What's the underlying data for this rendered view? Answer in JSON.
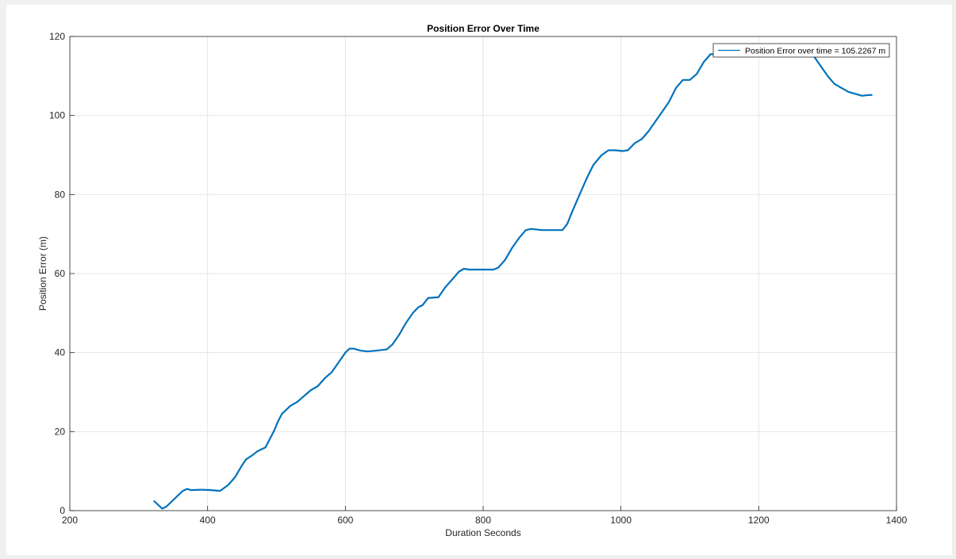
{
  "chart_data": {
    "type": "line",
    "title": "Position Error Over Time",
    "xlabel": "Duration Seconds",
    "ylabel": "Position Error (m)",
    "xlim": [
      200,
      1400
    ],
    "ylim": [
      0,
      120
    ],
    "xticks": [
      "200",
      "400",
      "600",
      "800",
      "1000",
      "1200",
      "1400"
    ],
    "yticks": [
      "0",
      "20",
      "40",
      "60",
      "80",
      "100",
      "120"
    ],
    "grid": true,
    "legend_position": "top-right",
    "colors": {
      "series": "#0072BD",
      "grid": "#e6e6e6",
      "axis": "#262626"
    },
    "series": [
      {
        "name": "Position Error over time = 105.2267 m",
        "x": [
          322,
          328,
          334,
          340,
          346,
          352,
          358,
          364,
          370,
          376,
          390,
          405,
          418,
          430,
          440,
          450,
          456,
          465,
          472,
          478,
          484,
          490,
          496,
          502,
          508,
          514,
          520,
          530,
          540,
          550,
          560,
          570,
          580,
          590,
          600,
          606,
          612,
          622,
          632,
          645,
          660,
          668,
          678,
          688,
          698,
          706,
          712,
          720,
          735,
          745,
          755,
          765,
          772,
          780,
          800,
          815,
          822,
          832,
          842,
          852,
          862,
          870,
          885,
          900,
          915,
          922,
          930,
          940,
          950,
          960,
          972,
          982,
          992,
          1002,
          1010,
          1020,
          1030,
          1040,
          1050,
          1060,
          1070,
          1080,
          1090,
          1100,
          1110,
          1120,
          1130,
          1140,
          1180,
          1220,
          1260,
          1280,
          1290,
          1300,
          1310,
          1320,
          1330,
          1340,
          1350,
          1360,
          1365
        ],
        "y": [
          2.5,
          1.5,
          0.5,
          1.0,
          2.0,
          3.0,
          4.0,
          5.0,
          5.5,
          5.2,
          5.3,
          5.2,
          5.0,
          6.5,
          8.5,
          11.5,
          13.0,
          14.0,
          15.0,
          15.5,
          16.0,
          18.0,
          20.0,
          22.5,
          24.5,
          25.5,
          26.5,
          27.5,
          29.0,
          30.5,
          31.5,
          33.5,
          35.0,
          37.5,
          40.0,
          41.0,
          41.0,
          40.5,
          40.3,
          40.5,
          40.8,
          42.0,
          44.5,
          47.5,
          50.0,
          51.5,
          52.0,
          53.8,
          54.0,
          56.5,
          58.5,
          60.5,
          61.2,
          61.0,
          61.0,
          61.0,
          61.5,
          63.5,
          66.5,
          69.0,
          71.0,
          71.3,
          71.0,
          71.0,
          71.0,
          72.5,
          76.0,
          80.0,
          84.0,
          87.5,
          90.0,
          91.2,
          91.2,
          91.0,
          91.2,
          93.0,
          94.0,
          96.0,
          98.5,
          101.0,
          103.5,
          107.0,
          109.0,
          109.0,
          110.5,
          113.5,
          115.5,
          115.5,
          115.5,
          115.5,
          115.5,
          115.0,
          112.5,
          110.0,
          108.0,
          107.0,
          106.0,
          105.5,
          105.0,
          105.2,
          105.2
        ]
      }
    ]
  }
}
